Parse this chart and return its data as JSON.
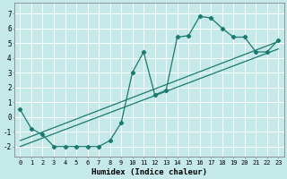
{
  "title": "",
  "xlabel": "Humidex (Indice chaleur)",
  "xlim": [
    -0.5,
    23.5
  ],
  "ylim": [
    -2.7,
    7.7
  ],
  "xticks": [
    0,
    1,
    2,
    3,
    4,
    5,
    6,
    7,
    8,
    9,
    10,
    11,
    12,
    13,
    14,
    15,
    16,
    17,
    18,
    19,
    20,
    21,
    22,
    23
  ],
  "yticks": [
    -2,
    -1,
    0,
    1,
    2,
    3,
    4,
    5,
    6,
    7
  ],
  "bg_color": "#c5e8e8",
  "grid_color": "#ffffff",
  "line_color": "#1a7a6e",
  "line1_x": [
    0,
    1,
    2,
    3,
    4,
    5,
    6,
    7,
    8,
    9,
    10,
    11,
    12,
    13,
    14,
    15,
    16,
    17,
    18,
    19,
    20,
    21,
    22,
    23
  ],
  "line1_y": [
    0.5,
    -0.8,
    -1.2,
    -2.0,
    -2.0,
    -2.0,
    -2.0,
    -2.0,
    -1.6,
    -0.4,
    3.0,
    4.4,
    1.5,
    1.8,
    5.4,
    5.5,
    6.8,
    6.7,
    6.0,
    5.4,
    5.4,
    4.4,
    4.4,
    5.2
  ],
  "line2_x": [
    0,
    23
  ],
  "line2_y": [
    -1.6,
    5.1
  ],
  "line3_x": [
    0,
    23
  ],
  "line3_y": [
    -2.0,
    4.6
  ],
  "marker": "D",
  "markersize": 2.2,
  "linewidth": 0.9,
  "tick_fontsize": 5.0,
  "xlabel_fontsize": 6.5
}
